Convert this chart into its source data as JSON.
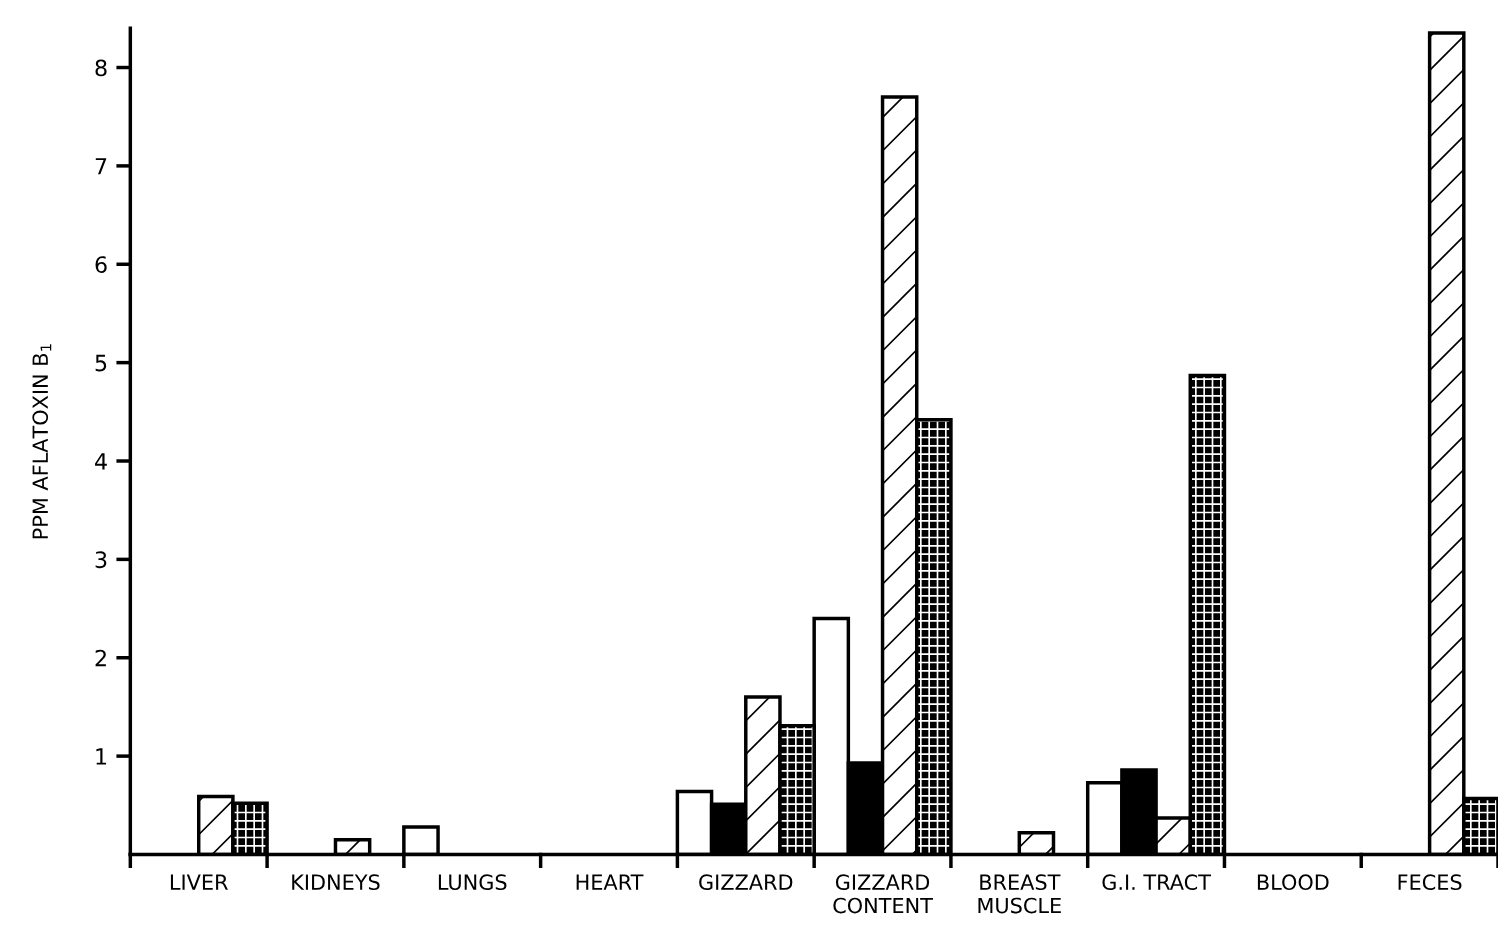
{
  "chart_data": {
    "type": "bar",
    "ylabel": "PPM AFLATOXIN B$_{1}$",
    "categories": [
      "LIVER",
      "KIDNEYS",
      "LUNGS",
      "HEART",
      "GIZZARD",
      "GIZZARD\nCONTENT",
      "BREAST\nMUSCLE",
      "G.I. TRACT",
      "BLOOD",
      "FECES"
    ],
    "series": [
      {
        "color": "#ffffff",
        "values": [
          null,
          null,
          0.28,
          null,
          0.64,
          2.4,
          null,
          0.73,
          null,
          null
        ]
      },
      {
        "color": "#000000",
        "values": [
          null,
          null,
          null,
          null,
          0.51,
          0.93,
          null,
          0.86,
          null,
          null
        ]
      },
      {
        "color": "#000000",
        "values": [
          0.59,
          0.15,
          null,
          null,
          1.6,
          7.7,
          0.22,
          0.37,
          null,
          8.35
        ]
      },
      {
        "color": "#000000",
        "values": [
          0.52,
          null,
          null,
          null,
          1.31,
          4.42,
          null,
          4.87,
          null,
          0.57
        ]
      }
    ],
    "ylim": [
      0,
      8.4
    ],
    "yticks": [
      1,
      2,
      3,
      4,
      5,
      6,
      7,
      8
    ],
    "grid": false,
    "legend": false
  }
}
